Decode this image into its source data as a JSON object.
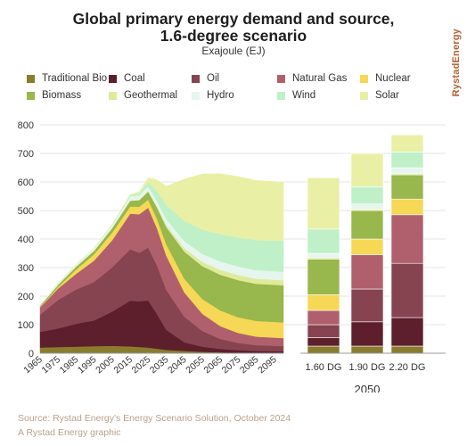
{
  "header": {
    "title_line1": "Global primary energy demand and source,",
    "title_line2": "1.6-degree scenario",
    "subtitle": "Exajoule (EJ)",
    "brand": "RystadEnergy"
  },
  "footer": {
    "source": "Source: Rystad Energy's Energy Scenario Solution, October 2024",
    "credit": "A Rystad Energy graphic"
  },
  "colors": {
    "Traditional Bio": "#8a7c2e",
    "Coal": "#5c1f2b",
    "Oil": "#864451",
    "Natural Gas": "#b0606c",
    "Nuclear": "#f6d756",
    "Biomass": "#98b74c",
    "Geothermal": "#dfea9a",
    "Hydro": "#e6f6ee",
    "Wind": "#bff0c8",
    "Solar": "#e9f0a6"
  },
  "legend": [
    "Traditional Bio",
    "Coal",
    "Oil",
    "Natural Gas",
    "Nuclear",
    "Biomass",
    "Geothermal",
    "Hydro",
    "Wind",
    "Solar"
  ],
  "chart_data": [
    {
      "type": "area",
      "stacked": true,
      "ylim": [
        0,
        800
      ],
      "yticks": [
        0,
        100,
        200,
        300,
        400,
        500,
        600,
        700,
        800
      ],
      "xlim": [
        1965,
        2100
      ],
      "xticks": [
        1965,
        1975,
        1985,
        1995,
        2005,
        2015,
        2025,
        2035,
        2045,
        2055,
        2065,
        2075,
        2085,
        2095
      ],
      "grid": "horizontal",
      "x": [
        1965,
        1975,
        1985,
        1995,
        2005,
        2015,
        2020,
        2025,
        2030,
        2035,
        2045,
        2055,
        2065,
        2075,
        2085,
        2100
      ],
      "series": [
        {
          "name": "Traditional Bio",
          "values": [
            20,
            22,
            23,
            25,
            26,
            24,
            22,
            20,
            16,
            12,
            8,
            5,
            3,
            2,
            1,
            1
          ]
        },
        {
          "name": "Coal",
          "values": [
            55,
            65,
            80,
            90,
            120,
            160,
            160,
            165,
            120,
            70,
            30,
            18,
            12,
            9,
            7,
            6
          ]
        },
        {
          "name": "Oil",
          "values": [
            60,
            100,
            120,
            135,
            155,
            180,
            170,
            185,
            170,
            140,
            90,
            55,
            35,
            25,
            20,
            18
          ]
        },
        {
          "name": "Natural Gas",
          "values": [
            25,
            40,
            55,
            75,
            95,
            125,
            135,
            140,
            130,
            120,
            85,
            60,
            45,
            35,
            30,
            28
          ]
        },
        {
          "name": "Nuclear",
          "values": [
            1,
            5,
            15,
            22,
            27,
            25,
            26,
            28,
            33,
            40,
            48,
            52,
            55,
            55,
            55,
            55
          ]
        },
        {
          "name": "Biomass",
          "values": [
            5,
            8,
            10,
            12,
            15,
            20,
            23,
            28,
            40,
            60,
            95,
            115,
            125,
            130,
            130,
            130
          ]
        },
        {
          "name": "Geothermal",
          "values": [
            0,
            0,
            1,
            1,
            1,
            2,
            2,
            3,
            5,
            8,
            12,
            15,
            17,
            18,
            18,
            18
          ]
        },
        {
          "name": "Hydro",
          "values": [
            3,
            5,
            7,
            9,
            11,
            14,
            15,
            16,
            18,
            20,
            25,
            28,
            30,
            30,
            30,
            30
          ]
        },
        {
          "name": "Wind",
          "values": [
            0,
            0,
            0,
            0,
            1,
            4,
            7,
            15,
            35,
            50,
            70,
            85,
            95,
            102,
            105,
            108
          ]
        },
        {
          "name": "Solar",
          "values": [
            0,
            0,
            0,
            0,
            0,
            2,
            6,
            15,
            40,
            65,
            147,
            195,
            212,
            213,
            209,
            206
          ]
        }
      ]
    },
    {
      "type": "bar",
      "stacked": true,
      "ylim": [
        0,
        800
      ],
      "categories": [
        "1.60 DG",
        "1.90 DG",
        "2.20 DG"
      ],
      "group_label": "2050",
      "series": [
        {
          "name": "Traditional Bio",
          "values": [
            25,
            25,
            25
          ]
        },
        {
          "name": "Coal",
          "values": [
            30,
            85,
            100
          ]
        },
        {
          "name": "Oil",
          "values": [
            45,
            115,
            190
          ]
        },
        {
          "name": "Natural Gas",
          "values": [
            50,
            120,
            170
          ]
        },
        {
          "name": "Nuclear",
          "values": [
            55,
            55,
            55
          ]
        },
        {
          "name": "Biomass",
          "values": [
            125,
            100,
            85
          ]
        },
        {
          "name": "Geothermal",
          "values": [
            5,
            5,
            5
          ]
        },
        {
          "name": "Hydro",
          "values": [
            15,
            18,
            20
          ]
        },
        {
          "name": "Wind",
          "values": [
            85,
            60,
            55
          ]
        },
        {
          "name": "Solar",
          "values": [
            180,
            117,
            60
          ]
        }
      ]
    }
  ]
}
